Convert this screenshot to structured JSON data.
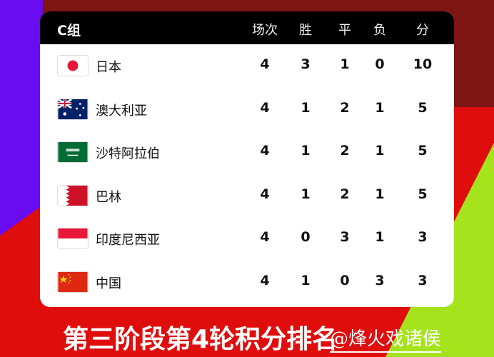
{
  "group": "C组",
  "headers": [
    "场次",
    "胜",
    "平",
    "负",
    "分"
  ],
  "teams": [
    {
      "name": "日本",
      "flag": "japan",
      "stats": [
        "4",
        "3",
        "1",
        "0",
        "10"
      ]
    },
    {
      "name": "澳大利亚",
      "flag": "australia",
      "stats": [
        "4",
        "1",
        "2",
        "1",
        "5"
      ]
    },
    {
      "name": "沙特阿拉伯",
      "flag": "saudi-arabia",
      "stats": [
        "4",
        "1",
        "2",
        "1",
        "5"
      ]
    },
    {
      "name": "巴林",
      "flag": "bahrain",
      "stats": [
        "4",
        "1",
        "2",
        "1",
        "5"
      ]
    },
    {
      "name": "印度尼西亚",
      "flag": "indonesia",
      "stats": [
        "4",
        "0",
        "3",
        "1",
        "3"
      ]
    },
    {
      "name": "中国",
      "flag": "china",
      "stats": [
        "4",
        "1",
        "0",
        "3",
        "3"
      ]
    }
  ],
  "caption": "第三阶段第4轮积分排名",
  "watermark": "@烽火戏诸侯",
  "colors": {
    "background_red": "#e00d0d",
    "purple": "#6a0cf2",
    "green": "#a5e41c",
    "header": "#000000"
  }
}
